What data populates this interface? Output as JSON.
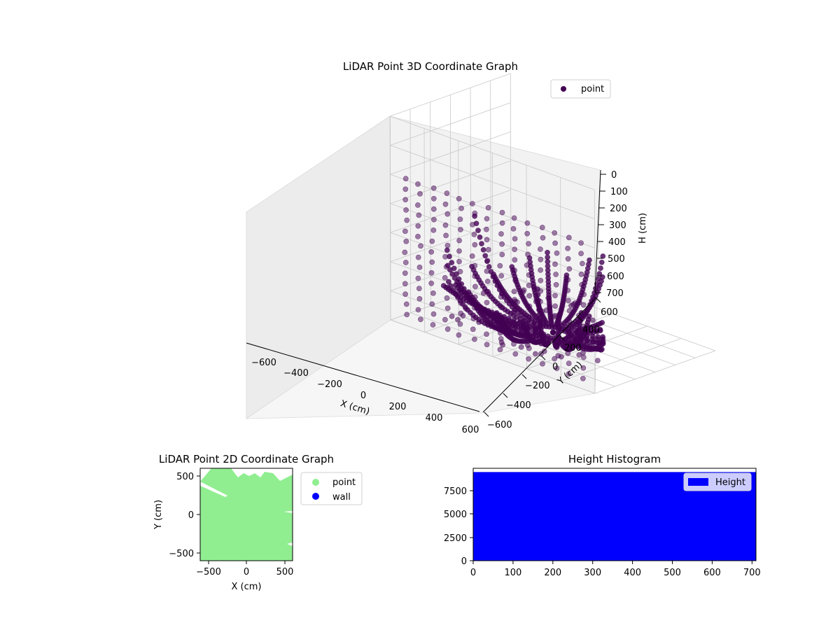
{
  "chart_data": [
    {
      "type": "scatter",
      "projection": "3d",
      "title": "LiDAR Point 3D Coordinate Graph",
      "xlabel": "X (cm)",
      "ylabel": "Y (cm)",
      "zlabel": "H (cm)",
      "xlim": [
        -600,
        600
      ],
      "ylim": [
        -600,
        600
      ],
      "zlim": [
        0,
        700
      ],
      "z_inverted": true,
      "x_ticks": [
        "−600",
        "−400",
        "−200",
        "0",
        "200",
        "400",
        "600"
      ],
      "y_ticks": [
        "−600",
        "−400",
        "−200",
        "0",
        "200",
        "400",
        "600"
      ],
      "z_ticks": [
        "0",
        "100",
        "200",
        "300",
        "400",
        "500",
        "600",
        "700"
      ],
      "grid": true,
      "legend": {
        "placement": "top-right",
        "entries": [
          {
            "label": "point",
            "color": "#440154"
          }
        ]
      },
      "series": [
        {
          "name": "point",
          "color": "#440154"
        }
      ]
    },
    {
      "type": "scatter",
      "title": "LiDAR Point 2D Coordinate Graph",
      "xlabel": "X (cm)",
      "ylabel": "Y (cm)",
      "xlim": [
        -600,
        600
      ],
      "ylim": [
        -600,
        600
      ],
      "x_ticks": [
        "−500",
        "0",
        "500"
      ],
      "y_ticks": [
        "−500",
        "0",
        "500"
      ],
      "legend": {
        "placement": "outside-right",
        "entries": [
          {
            "label": "point",
            "color": "#90ee90"
          },
          {
            "label": "wall",
            "color": "#0000ff"
          }
        ]
      },
      "series": [
        {
          "name": "point",
          "color": "#90ee90"
        },
        {
          "name": "wall",
          "color": "#0000ff"
        }
      ]
    },
    {
      "type": "bar",
      "title": "Height Histogram",
      "xlim": [
        0,
        710
      ],
      "ylim": [
        0,
        9850
      ],
      "x_ticks": [
        "0",
        "100",
        "200",
        "300",
        "400",
        "500",
        "600",
        "700"
      ],
      "y_ticks": [
        "0",
        "2500",
        "5000",
        "7500"
      ],
      "bar_value": 9450,
      "legend": {
        "placement": "top-right",
        "entries": [
          {
            "label": "Height",
            "color": "#0000ff"
          }
        ]
      },
      "series": [
        {
          "name": "Height",
          "color": "#0000ff",
          "x_range": [
            0,
            710
          ],
          "value": 9450
        }
      ]
    }
  ]
}
